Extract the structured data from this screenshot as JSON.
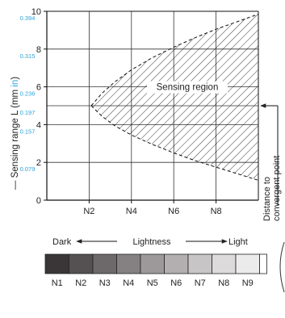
{
  "chart_data": {
    "type": "area",
    "x_ticks": [
      "N2",
      "N4",
      "N6",
      "N8"
    ],
    "y_ticks_mm": [
      "0",
      "2",
      "4",
      "6",
      "8",
      "10"
    ],
    "y_ticks_in": [
      "0.079",
      "0.157",
      "0.197",
      "0.236",
      "0.315",
      "0.394"
    ],
    "y_ticks_in_values_mm": [
      2,
      4,
      5,
      6,
      8,
      10
    ],
    "ylim": [
      0,
      10
    ],
    "xlim": [
      0,
      10
    ],
    "ylabel": {
      "prefix": "— Sensing range L (mm ",
      "unit": "in",
      "suffix": ")"
    },
    "region_label": "Sensing region",
    "convergent_point_label": [
      "Distance to",
      "convergent point"
    ],
    "convergent_point_value": 5,
    "sensing_region": {
      "upper_boundary": [
        [
          2.1,
          5
        ],
        [
          2.6,
          5.65
        ],
        [
          3.2,
          6.25
        ],
        [
          4,
          6.9
        ],
        [
          5,
          7.55
        ],
        [
          6,
          8.1
        ],
        [
          7,
          8.6
        ],
        [
          8,
          9.05
        ],
        [
          9,
          9.45
        ],
        [
          10,
          9.85
        ]
      ],
      "lower_boundary": [
        [
          2.1,
          5
        ],
        [
          2.6,
          4.45
        ],
        [
          3.2,
          3.95
        ],
        [
          4,
          3.45
        ],
        [
          5,
          2.95
        ],
        [
          6,
          2.5
        ],
        [
          7,
          2.1
        ],
        [
          8,
          1.75
        ],
        [
          9,
          1.4
        ],
        [
          10,
          1.05
        ]
      ]
    },
    "grid": true
  },
  "lightness": {
    "dark_label": "Dark",
    "title": "Lightness",
    "light_label": "Light",
    "swatches": [
      {
        "label": "N1",
        "color": "#3a3637"
      },
      {
        "label": "N2",
        "color": "#555152"
      },
      {
        "label": "N3",
        "color": "#6d696a"
      },
      {
        "label": "N4",
        "color": "#858182"
      },
      {
        "label": "N5",
        "color": "#9d999a"
      },
      {
        "label": "N6",
        "color": "#b3afb0"
      },
      {
        "label": "N7",
        "color": "#c8c5c6"
      },
      {
        "label": "N8",
        "color": "#dcdadb"
      },
      {
        "label": "N9",
        "color": "#ecebeb"
      }
    ]
  }
}
